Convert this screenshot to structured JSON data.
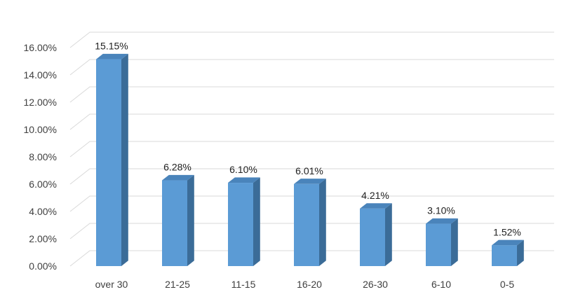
{
  "chart_data": {
    "type": "bar",
    "title": "",
    "xlabel": "",
    "ylabel": "",
    "categories": [
      "over 30",
      "21-25",
      "11-15",
      "16-20",
      "26-30",
      "6-10",
      "0-5"
    ],
    "values": [
      15.15,
      6.28,
      6.1,
      6.01,
      4.21,
      3.1,
      1.52
    ],
    "data_labels": [
      "15.15%",
      "6.28%",
      "6.10%",
      "6.01%",
      "4.21%",
      "3.10%",
      "1.52%"
    ],
    "ylim": [
      0,
      16
    ],
    "y_ticks": [
      0,
      2,
      4,
      6,
      8,
      10,
      12,
      14,
      16
    ],
    "y_tick_labels": [
      "0.00%",
      "2.00%",
      "4.00%",
      "6.00%",
      "8.00%",
      "10.00%",
      "12.00%",
      "14.00%",
      "16.00%"
    ],
    "grid": true,
    "legend": "none",
    "style": "3d-column"
  },
  "colors": {
    "bar_front": "#5b9bd5",
    "bar_side": "#3b6c98",
    "bar_top": "#4a84bb",
    "grid": "#d9d9d9",
    "text": "#404040"
  }
}
